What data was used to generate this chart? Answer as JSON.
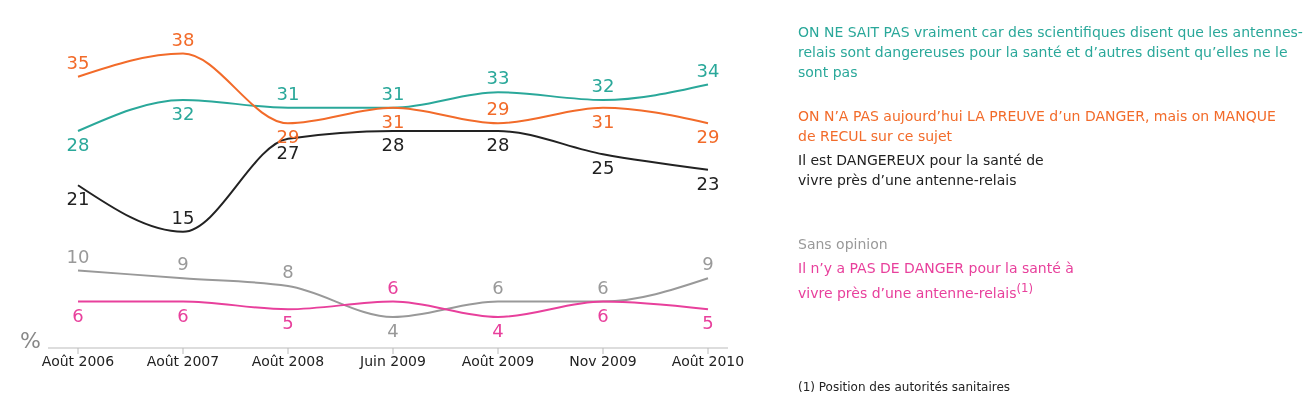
{
  "chart_data": {
    "type": "line",
    "categories": [
      "Août 2006",
      "Août 2007",
      "Août 2008",
      "Juin 2009",
      "Août 2009",
      "Nov 2009",
      "Août 2010"
    ],
    "series": [
      {
        "name": "ON NE SAIT PAS vraiment car des scientifiques disent que les antennes-relais sont dangereuses pour la santé et d’autres disent qu’elles ne le sont pas",
        "color": "#2aa89a",
        "values": [
          28,
          32,
          31,
          31,
          33,
          32,
          34
        ]
      },
      {
        "name": "ON N’A PAS aujourd’hui LA PREUVE d’un DANGER, mais on MANQUE de RECUL sur ce sujet",
        "color": "#f26b2a",
        "values": [
          35,
          38,
          29,
          31,
          29,
          31,
          29
        ]
      },
      {
        "name": "Il est DANGEREUX pour la santé de vivre près d’une antenne-relais",
        "color": "#222222",
        "values": [
          21,
          15,
          27,
          28,
          28,
          25,
          23
        ]
      },
      {
        "name": "Sans opinion",
        "color": "#999999",
        "values": [
          10,
          9,
          8,
          4,
          6,
          6,
          9
        ]
      },
      {
        "name": "Il n’y a PAS DE DANGER pour la santé à vivre près d’une antenne-relais$^{(1)}$",
        "color": "#e8409c",
        "values": [
          6,
          6,
          5,
          6,
          4,
          6,
          5
        ]
      }
    ],
    "data_labels": true,
    "legend": "right",
    "grid": false,
    "marker": "none",
    "line_style": "solid",
    "annotations": [
      "%",
      "(1) Position des autorités sanitaires"
    ]
  }
}
